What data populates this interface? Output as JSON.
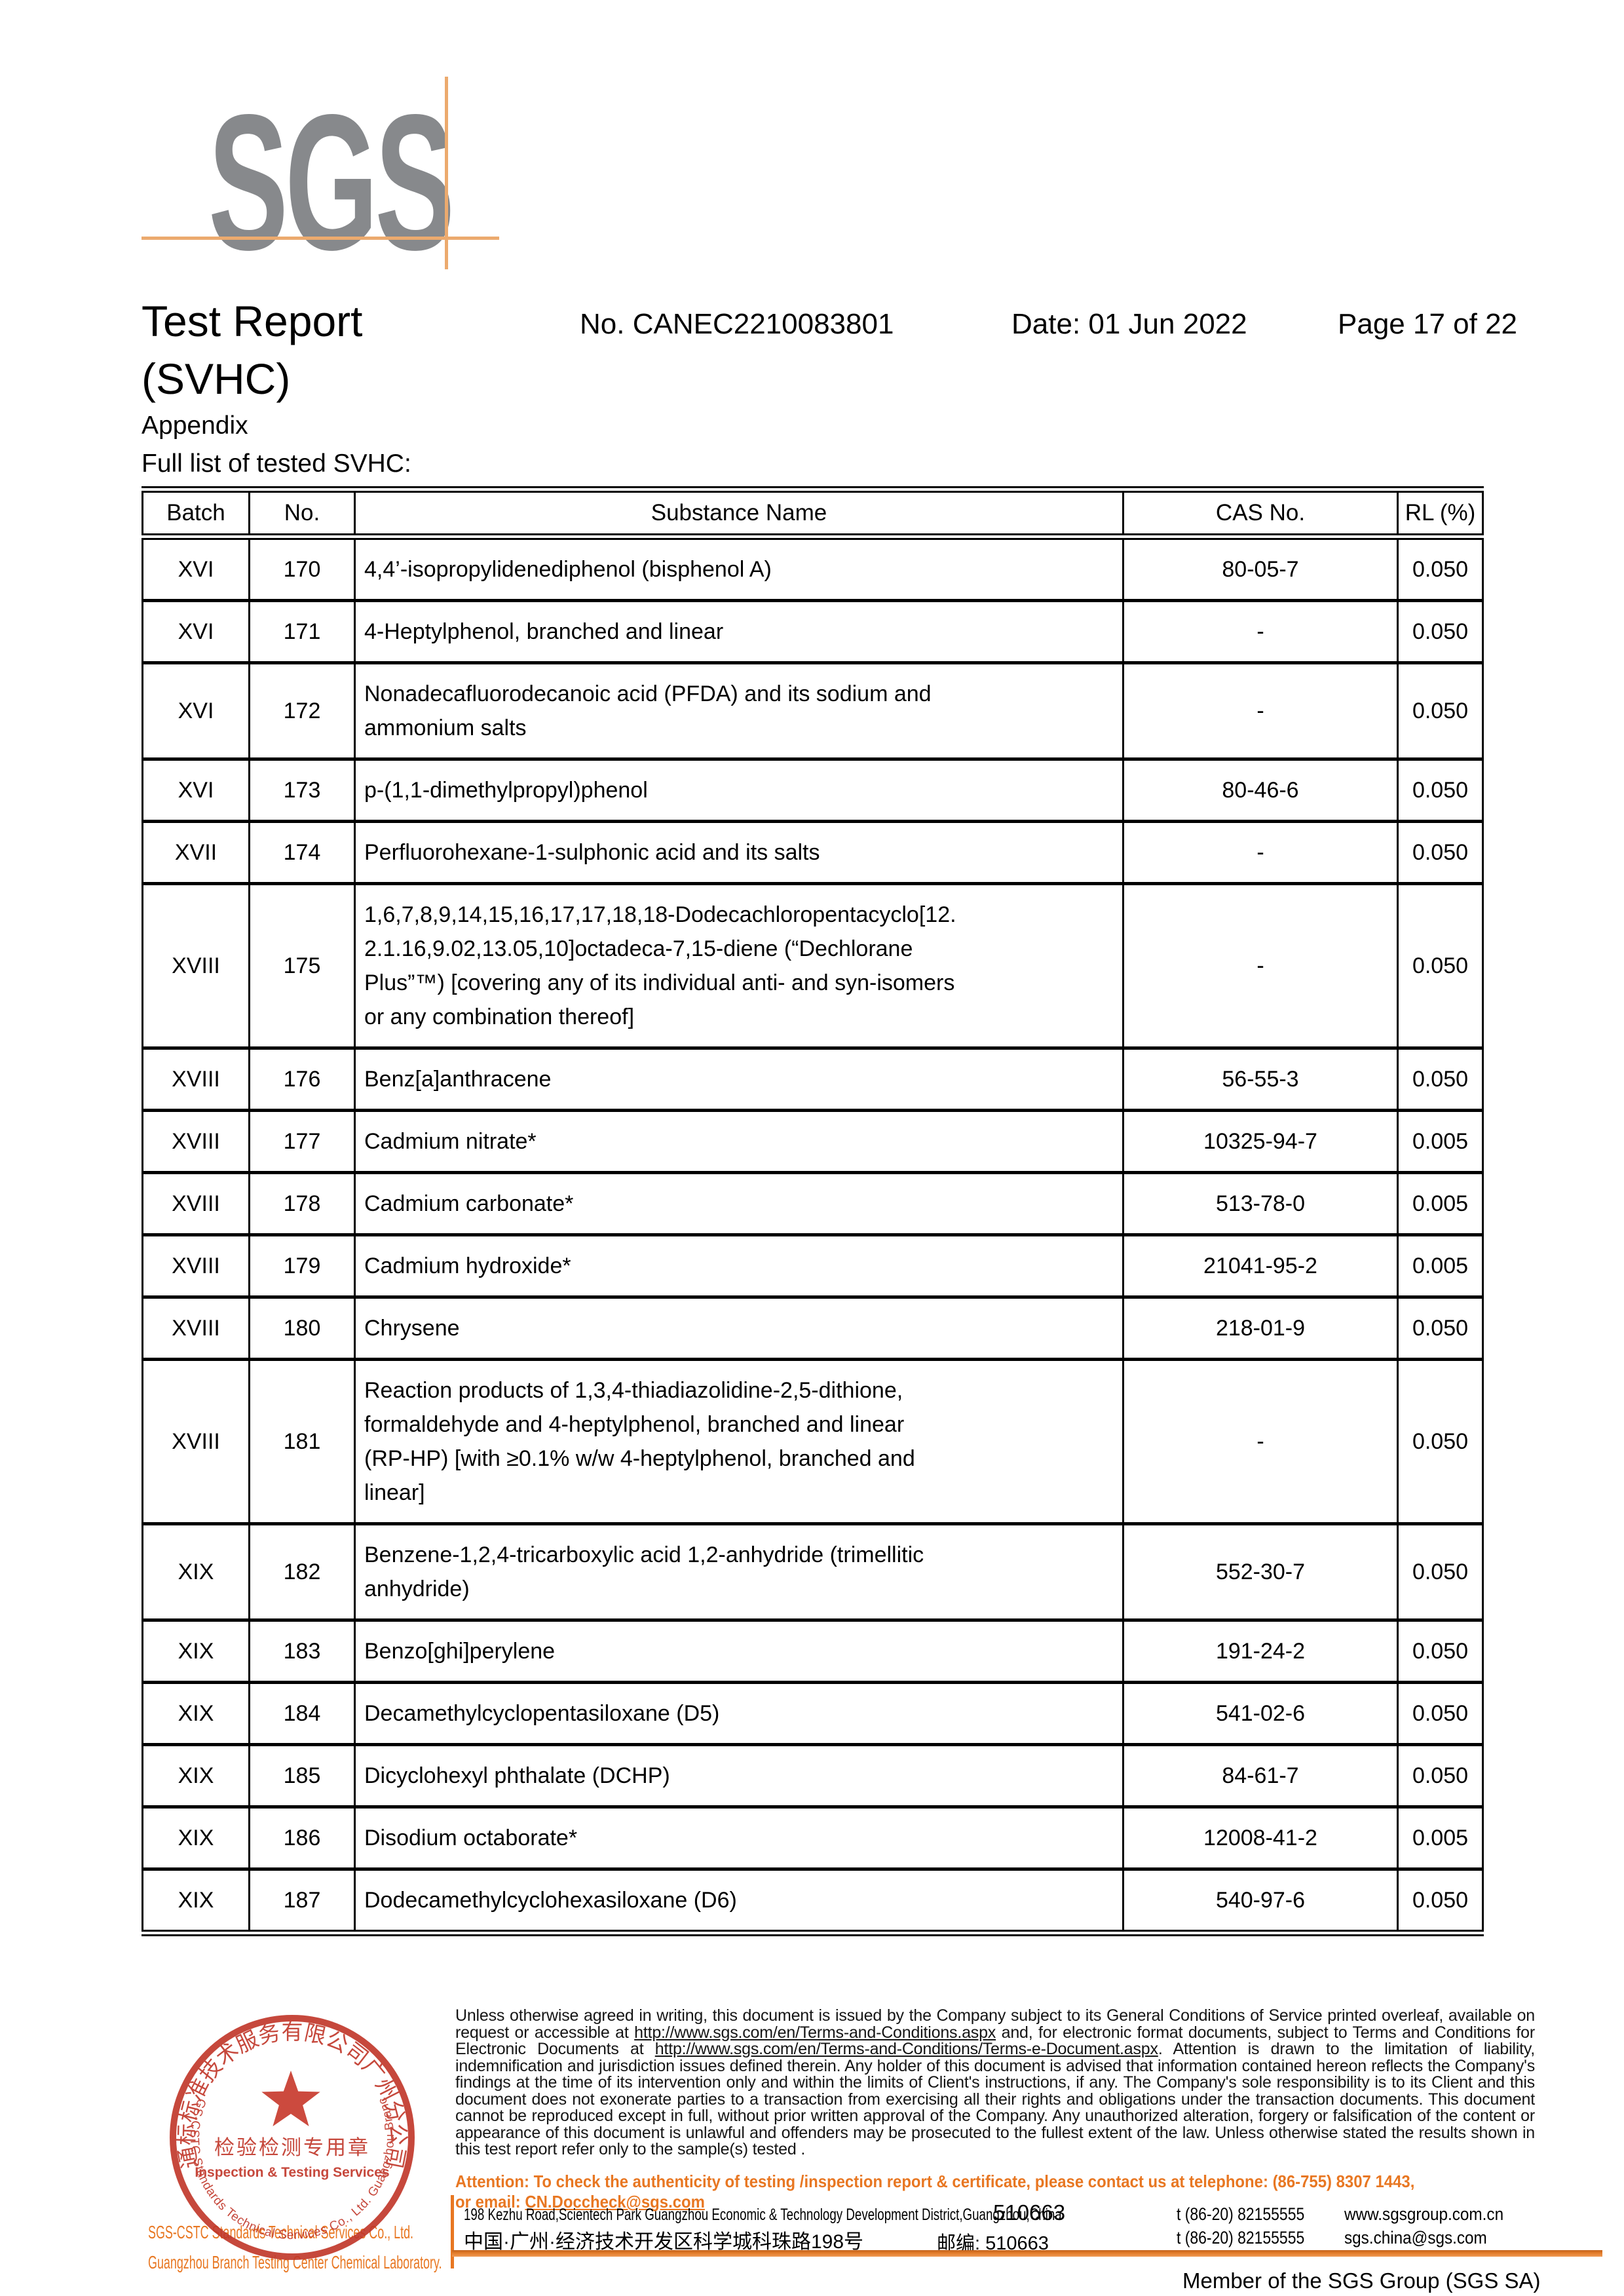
{
  "header": {
    "logo_text": "SGS",
    "title": "Test Report",
    "subtitle": "(SVHC)",
    "report_no": "No. CANEC2210083801",
    "date": "Date: 01 Jun 2022",
    "page": "Page 17 of 22"
  },
  "appendix": {
    "heading": "Appendix",
    "subheading": "Full list of tested SVHC:"
  },
  "table": {
    "columns": [
      "Batch",
      "No.",
      "Substance Name",
      "CAS No.",
      "RL (%)"
    ],
    "rows": [
      {
        "batch": "XVI",
        "no": "170",
        "substance": "4,4’-isopropylidenediphenol (bisphenol A)",
        "cas": "80-05-7",
        "rl": "0.050"
      },
      {
        "batch": "XVI",
        "no": "171",
        "substance": "4-Heptylphenol, branched and linear",
        "cas": "-",
        "rl": "0.050"
      },
      {
        "batch": "XVI",
        "no": "172",
        "substance": "Nonadecafluorodecanoic acid (PFDA) and its sodium and\nammonium salts",
        "cas": "-",
        "rl": "0.050"
      },
      {
        "batch": "XVI",
        "no": "173",
        "substance": "p-(1,1-dimethylpropyl)phenol",
        "cas": "80-46-6",
        "rl": "0.050"
      },
      {
        "batch": "XVII",
        "no": "174",
        "substance": "Perfluorohexane-1-sulphonic acid and its salts",
        "cas": "-",
        "rl": "0.050"
      },
      {
        "batch": "XVIII",
        "no": "175",
        "substance": "1,6,7,8,9,14,15,16,17,17,18,18-Dodecachloropentacyclo[12.\n2.1.16,9.02,13.05,10]octadeca-7,15-diene (“Dechlorane\nPlus”™) [covering any of its individual anti- and syn-isomers\nor any combination thereof]",
        "cas": "-",
        "rl": "0.050"
      },
      {
        "batch": "XVIII",
        "no": "176",
        "substance": "Benz[a]anthracene",
        "cas": "56-55-3",
        "rl": "0.050"
      },
      {
        "batch": "XVIII",
        "no": "177",
        "substance": "Cadmium nitrate*",
        "cas": "10325-94-7",
        "rl": "0.005"
      },
      {
        "batch": "XVIII",
        "no": "178",
        "substance": "Cadmium carbonate*",
        "cas": "513-78-0",
        "rl": "0.005"
      },
      {
        "batch": "XVIII",
        "no": "179",
        "substance": "Cadmium hydroxide*",
        "cas": "21041-95-2",
        "rl": "0.005"
      },
      {
        "batch": "XVIII",
        "no": "180",
        "substance": "Chrysene",
        "cas": "218-01-9",
        "rl": "0.050"
      },
      {
        "batch": "XVIII",
        "no": "181",
        "substance": "Reaction products of 1,3,4-thiadiazolidine-2,5-dithione,\nformaldehyde and 4-heptylphenol, branched and linear\n(RP-HP) [with ≥0.1% w/w 4-heptylphenol, branched and\nlinear]",
        "cas": "-",
        "rl": "0.050"
      },
      {
        "batch": "XIX",
        "no": "182",
        "substance": "Benzene-1,2,4-tricarboxylic acid 1,2-anhydride (trimellitic\nanhydride)",
        "cas": "552-30-7",
        "rl": "0.050"
      },
      {
        "batch": "XIX",
        "no": "183",
        "substance": "Benzo[ghi]perylene",
        "cas": "191-24-2",
        "rl": "0.050"
      },
      {
        "batch": "XIX",
        "no": "184",
        "substance": "Decamethylcyclopentasiloxane (D5)",
        "cas": "541-02-6",
        "rl": "0.050"
      },
      {
        "batch": "XIX",
        "no": "185",
        "substance": "Dicyclohexyl phthalate (DCHP)",
        "cas": "84-61-7",
        "rl": "0.050"
      },
      {
        "batch": "XIX",
        "no": "186",
        "substance": "Disodium octaborate*",
        "cas": "12008-41-2",
        "rl": "0.005"
      },
      {
        "batch": "XIX",
        "no": "187",
        "substance": "Dodecamethylcyclohexasiloxane (D6)",
        "cas": "540-97-6",
        "rl": "0.050"
      }
    ]
  },
  "stamp": {
    "ring_top": "通标标准技术服务有限公司广州分公司",
    "center_cn": "检验检测专用章",
    "center_en": "Inspection & Testing Services",
    "ring_bottom": "SGS-CSTC Standards Technical Services Co., Ltd. Guangzhou Branch"
  },
  "footer": {
    "company_line1": "SGS-CSTC Standards Technical Services Co., Ltd.",
    "company_line2": "Guangzhou Branch Testing Center Chemical Laboratory.",
    "disclaimer_p1": "Unless otherwise agreed in writing, this document is issued by the Company subject to its General Conditions of Service printed overleaf, available on request or accessible at ",
    "disclaimer_link1": "http://www.sgs.com/en/Terms-and-Conditions.aspx",
    "disclaimer_p2": " and, for electronic format documents, subject to Terms and Conditions for Electronic Documents at ",
    "disclaimer_link2": "http://www.sgs.com/en/Terms-and-Conditions/Terms-e-Document.aspx",
    "disclaimer_p3": ". Attention is drawn to the limitation of liability, indemnification and jurisdiction issues defined therein. Any holder of this document is advised that information contained hereon reflects the Company's findings at the time of its intervention only and within the limits of Client's instructions, if any. The Company's sole responsibility is to its Client and this document does not exonerate parties to a transaction from exercising all their rights and obligations under the transaction documents. This document cannot be reproduced except in full, without prior written approval of the Company. Any unauthorized alteration, forgery or falsification of the content or appearance of this document is unlawful and offenders may be prosecuted to the fullest extent of the law. Unless otherwise stated the results shown in this test report refer only to the sample(s) tested .",
    "attention_line1": "Attention: To check the authenticity of testing /inspection report & certificate, please contact us at telephone: (86-755) 8307 1443,",
    "attention_line2_prefix": "or email: ",
    "attention_email": "CN.Doccheck@sgs.com",
    "address_en": "198 Kezhu Road,Scientech Park Guangzhou Economic & Technology Development District,Guangzhou,China",
    "postal_en": "510663",
    "address_cn": "中国·广州·经济技术开发区科学城科珠路198号",
    "postal_cn": "邮编: 510663",
    "phone1": "t (86-20) 82155555",
    "web": "www.sgsgroup.com.cn",
    "phone2": "t (86-20) 82155555",
    "email": "sgs.china@sgs.com",
    "member": "Member of the SGS Group (SGS SA)"
  }
}
